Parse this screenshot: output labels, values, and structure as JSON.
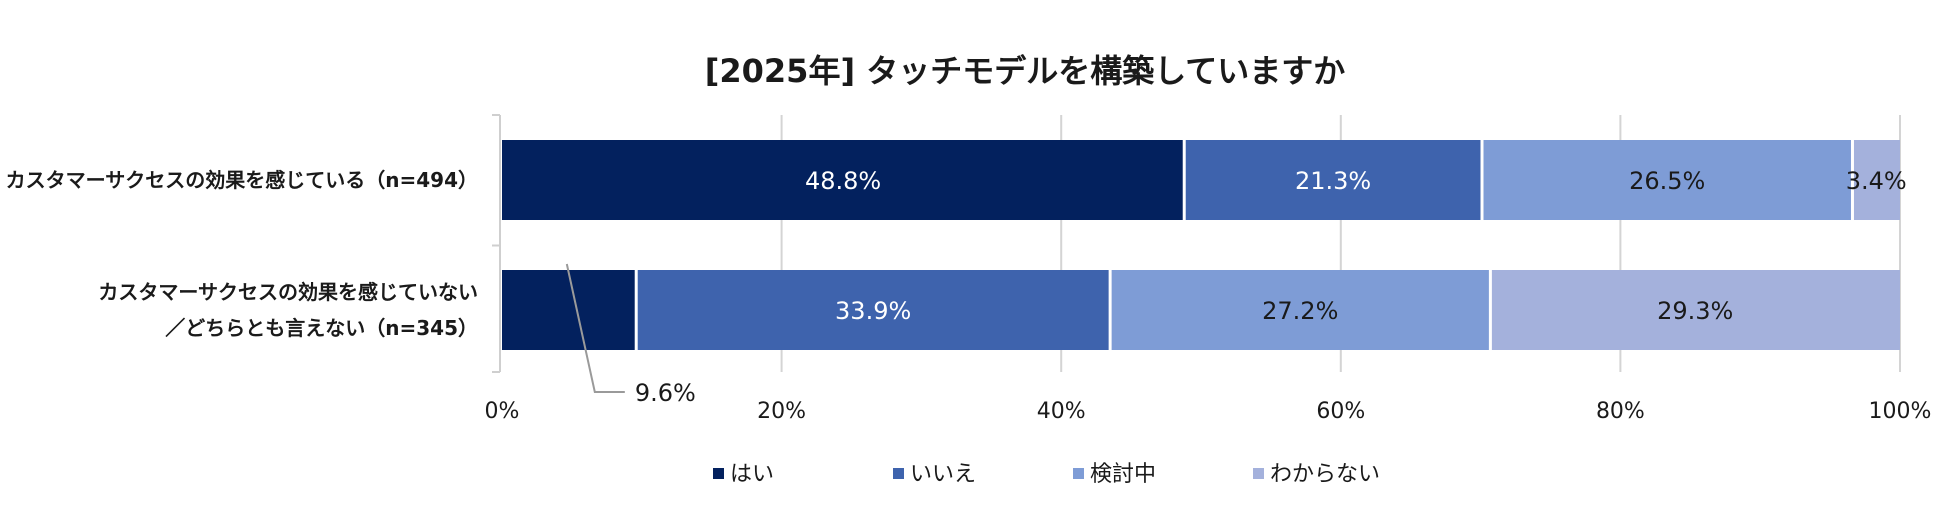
{
  "chart_data": {
    "type": "bar",
    "orientation": "horizontal",
    "stacked": true,
    "title": "[2025年] タッチモデルを構築していますか",
    "categories": [
      [
        "カスタマーサクセスの効果を感じている（n=494）"
      ],
      [
        "カスタマーサクセスの効果を感じていない",
        "／どちらとも言えない（n=345）"
      ]
    ],
    "series": [
      {
        "name": "はい",
        "color": "#03215E",
        "label_color": "#ffffff",
        "values": [
          48.8,
          9.6
        ],
        "labels": [
          "48.8%",
          "9.6%"
        ]
      },
      {
        "name": "いいえ",
        "color": "#3E63AD",
        "label_color": "#ffffff",
        "values": [
          21.3,
          33.9
        ],
        "labels": [
          "21.3%",
          "33.9%"
        ]
      },
      {
        "name": "検討中",
        "color": "#7E9CD6",
        "label_color": "#1a1a1a",
        "values": [
          26.5,
          27.2
        ],
        "labels": [
          "26.5%",
          "27.2%"
        ]
      },
      {
        "name": "わからない",
        "color": "#A4B1DC",
        "label_color": "#1a1a1a",
        "values": [
          3.4,
          29.3
        ],
        "labels": [
          "3.4%",
          "29.3%"
        ]
      }
    ],
    "xlim": [
      0,
      100
    ],
    "xticks": [
      0,
      20,
      40,
      60,
      80,
      100
    ],
    "xtick_labels": [
      "0%",
      "20%",
      "40%",
      "60%",
      "80%",
      "100%"
    ],
    "grid": "vertical",
    "legend": "bottom",
    "callouts": [
      {
        "series": 0,
        "category": 1,
        "label": "9.6%"
      }
    ]
  }
}
